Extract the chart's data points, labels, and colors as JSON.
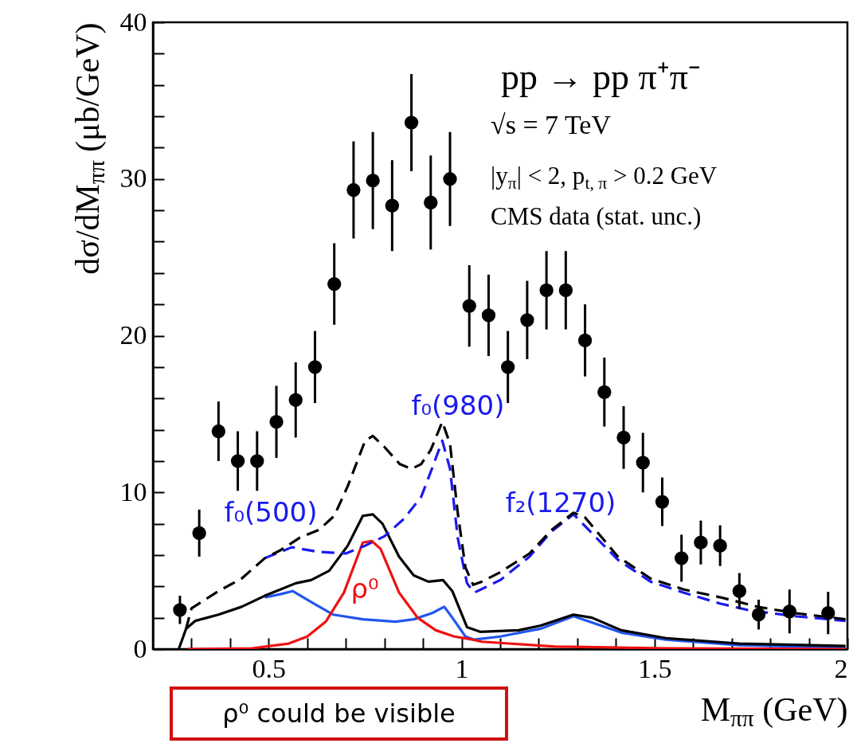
{
  "chart_data": {
    "type": "line",
    "xlabel": "M$_{ππ}$ (GeV)",
    "ylabel": "dσ/dM$_{ππ}$ (μb/GeV)",
    "xlim": [
      0.2,
      2
    ],
    "ylim": [
      0,
      40
    ],
    "xticks": [
      {
        "value": 0.3,
        "label": null
      },
      {
        "value": 0.4,
        "label": null
      },
      0.5,
      {
        "value": 0.6,
        "label": null
      },
      {
        "value": 0.7,
        "label": null
      },
      {
        "value": 0.8,
        "label": null
      },
      {
        "value": 0.9,
        "label": null
      },
      1,
      {
        "value": 1.1,
        "label": null
      },
      {
        "value": 1.2,
        "label": null
      },
      {
        "value": 1.3,
        "label": null
      },
      {
        "value": 1.4,
        "label": null
      },
      1.5,
      {
        "value": 1.6,
        "label": null
      },
      {
        "value": 1.7,
        "label": null
      },
      {
        "value": 1.8,
        "label": null
      },
      {
        "value": 1.9,
        "label": null
      },
      2
    ],
    "yticks": [
      0,
      {
        "value": 2,
        "label": null
      },
      {
        "value": 4,
        "label": null
      },
      {
        "value": 6,
        "label": null
      },
      {
        "value": 8,
        "label": null
      },
      10,
      {
        "value": 12,
        "label": null
      },
      {
        "value": 14,
        "label": null
      },
      {
        "value": 16,
        "label": null
      },
      {
        "value": 18,
        "label": null
      },
      20,
      {
        "value": 22,
        "label": null
      },
      {
        "value": 24,
        "label": null
      },
      {
        "value": 26,
        "label": null
      },
      {
        "value": 28,
        "label": null
      },
      30,
      {
        "value": 32,
        "label": null
      },
      {
        "value": 34,
        "label": null
      },
      {
        "value": 36,
        "label": null
      },
      {
        "value": 38,
        "label": null
      },
      40
    ],
    "annotations": [
      "pp → pp π⁺π⁻",
      "√s = 7 TeV",
      "|y$_{π}$| < 2,  p$_{t, π}$ > 0.2 GeV",
      "CMS data  (stat. unc.)",
      "f₀(500)",
      "f₀(980)",
      "f₂(1270)",
      "ρ⁰",
      "ρ⁰ could be visible"
    ],
    "series": [
      {
        "color": "#2255ee",
        "line_style": "solid",
        "x": [
          0.49,
          0.53,
          0.562,
          0.61,
          0.667,
          0.744,
          0.829,
          0.876,
          0.924,
          0.955,
          0.976,
          1.01,
          1.033,
          1.1,
          1.205,
          1.29,
          1.414,
          1.529,
          1.719,
          1.995
        ],
        "values": [
          3.3,
          3.5,
          3.7,
          3.0,
          2.2,
          1.9,
          1.75,
          1.9,
          2.3,
          2.7,
          2.0,
          0.8,
          0.6,
          0.8,
          1.3,
          2.1,
          1.05,
          0.6,
          0.25,
          0.1
        ]
      },
      {
        "color": "#ee1111",
        "line_style": "solid",
        "x": [
          0.29,
          0.457,
          0.552,
          0.6,
          0.648,
          0.695,
          0.744,
          0.767,
          0.79,
          0.838,
          0.886,
          0.933,
          0.981,
          1.029,
          1.052,
          1.243,
          1.529,
          1.995
        ],
        "values": [
          0,
          0.05,
          0.35,
          0.8,
          1.75,
          3.6,
          6.8,
          6.9,
          6.4,
          3.6,
          2.0,
          1.2,
          0.8,
          0.6,
          0.47,
          0.16,
          0.05,
          0
        ]
      },
      {
        "color": "#000000",
        "line_style": "solid",
        "x": [
          0.267,
          0.286,
          0.31,
          0.37,
          0.43,
          0.49,
          0.53,
          0.57,
          0.61,
          0.657,
          0.705,
          0.744,
          0.77,
          0.795,
          0.838,
          0.876,
          0.914,
          0.952,
          0.976,
          1.014,
          1.048,
          1.148,
          1.205,
          1.29,
          1.338,
          1.414,
          1.529,
          1.719,
          1.995
        ],
        "values": [
          0,
          1.3,
          1.8,
          2.2,
          2.7,
          3.4,
          3.8,
          4.2,
          4.4,
          5.0,
          6.6,
          8.5,
          8.6,
          8.0,
          5.9,
          4.7,
          4.3,
          4.4,
          3.7,
          1.4,
          1.1,
          1.2,
          1.5,
          2.2,
          2.0,
          1.2,
          0.7,
          0.35,
          0.2
        ]
      },
      {
        "color": "#1a1aee",
        "line_style": "dashed",
        "x": [
          0.49,
          0.53,
          0.56,
          0.63,
          0.7,
          0.75,
          0.8,
          0.85,
          0.895,
          0.92,
          0.95,
          0.97,
          0.99,
          1.014,
          1.033,
          1.1,
          1.176,
          1.233,
          1.29,
          1.405,
          1.49,
          1.576,
          1.671,
          1.74,
          1.862,
          1.995
        ],
        "values": [
          5.8,
          6.2,
          6.5,
          6.2,
          6.1,
          6.6,
          7.2,
          8.3,
          9.7,
          11.3,
          13.3,
          11.5,
          7.1,
          4.2,
          3.6,
          4.4,
          5.9,
          7.5,
          8.6,
          5.7,
          4.3,
          3.6,
          2.9,
          2.5,
          2.1,
          1.8
        ]
      },
      {
        "color": "#000000",
        "line_style": "dashed",
        "x": [
          0.286,
          0.3,
          0.37,
          0.43,
          0.49,
          0.53,
          0.58,
          0.63,
          0.67,
          0.705,
          0.75,
          0.77,
          0.8,
          0.84,
          0.87,
          0.895,
          0.92,
          0.95,
          0.97,
          0.99,
          1.01,
          1.03,
          1.052,
          1.1,
          1.176,
          1.233,
          1.29,
          1.32,
          1.405,
          1.49,
          1.576,
          1.671,
          1.767,
          1.862,
          1.995
        ],
        "values": [
          1.3,
          2.6,
          3.7,
          4.5,
          5.8,
          6.3,
          7.1,
          7.6,
          8.5,
          10.4,
          13.3,
          13.6,
          12.9,
          11.8,
          11.5,
          11.8,
          12.7,
          14.5,
          13.1,
          8.7,
          5.2,
          4.1,
          4.3,
          4.9,
          6.1,
          7.6,
          8.7,
          8.4,
          5.9,
          4.5,
          3.8,
          3.3,
          2.7,
          2.3,
          1.9
        ]
      },
      {
        "type": "scatter",
        "color": "#000000",
        "marker": "circle",
        "x": [
          0.27,
          0.32,
          0.37,
          0.42,
          0.47,
          0.52,
          0.57,
          0.62,
          0.67,
          0.72,
          0.77,
          0.82,
          0.87,
          0.92,
          0.97,
          1.02,
          1.07,
          1.12,
          1.17,
          1.22,
          1.27,
          1.32,
          1.37,
          1.42,
          1.47,
          1.52,
          1.57,
          1.62,
          1.67,
          1.72,
          1.77,
          1.85,
          1.95
        ],
        "values": [
          2.5,
          7.4,
          13.9,
          12.0,
          12.0,
          14.5,
          15.9,
          18.0,
          23.3,
          29.3,
          29.9,
          28.3,
          33.6,
          28.5,
          30.0,
          21.9,
          21.3,
          18.0,
          21.0,
          22.9,
          22.9,
          19.7,
          16.4,
          13.5,
          11.9,
          9.4,
          5.8,
          6.8,
          6.6,
          3.7,
          2.2,
          2.4,
          2.3
        ],
        "errors": [
          0.9,
          1.5,
          1.9,
          1.9,
          1.9,
          2.3,
          2.4,
          2.3,
          2.6,
          3.1,
          3.1,
          2.9,
          3.1,
          3.0,
          3.0,
          2.6,
          2.6,
          2.3,
          2.5,
          2.5,
          2.5,
          2.3,
          2.2,
          2.0,
          1.9,
          1.55,
          1.5,
          1.4,
          1.3,
          1.15,
          0.95,
          1.4,
          1.35
        ]
      }
    ]
  }
}
